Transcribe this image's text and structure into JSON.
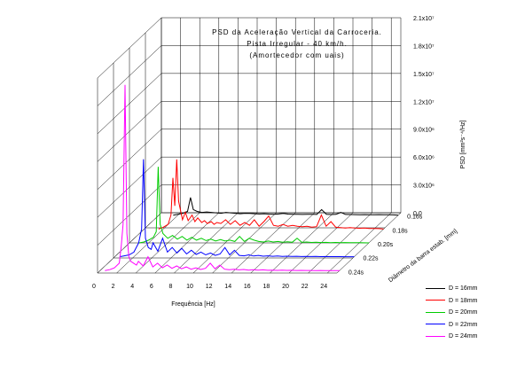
{
  "chart_data": {
    "type": "line",
    "title": "PSD da Aceleração Vertical da Carroceria.",
    "subtitle_lines": [
      "Pista Irregular - 40 km/h.",
      "(Amortecedor com uais)"
    ],
    "xlabel": "Frequência [Hz]",
    "ylabel": "PSD [mm²s⁻⁴/Hz]",
    "zlabel": "Diâmetro da barra estab. [mm]",
    "xlim": [
      0,
      25
    ],
    "x_ticks": [
      0,
      2,
      4,
      6,
      8,
      10,
      12,
      14,
      16,
      18,
      20,
      22,
      24
    ],
    "x_tick_labels": [
      "0",
      "2",
      "4",
      "6",
      "8",
      "10",
      "12",
      "14",
      "16",
      "18",
      "20",
      "22",
      "24"
    ],
    "ylim": [
      0,
      21000000
    ],
    "y_ticks": [
      0,
      3000000,
      6000000,
      9000000,
      12000000,
      15000000,
      18000000,
      21000000
    ],
    "y_tick_labels": [
      "0.0",
      "3.0x10⁶",
      "6.0x10⁶",
      "9.0x10⁶",
      "1.2x10⁷",
      "1.5x10⁷",
      "1.8x10⁷",
      "2.1x10⁷"
    ],
    "z_tick_labels": [
      "0.16s",
      "0.18s",
      "0.20s",
      "0.22s",
      "0.24s"
    ],
    "grid": true,
    "legend_position": "bottom-right",
    "series": [
      {
        "name": "D = 16mm",
        "color": "#000000",
        "x": [
          1.5,
          2.0,
          2.5,
          3.0,
          3.3,
          3.6,
          4.0,
          4.5,
          5.0,
          5.5,
          6.0,
          6.5,
          7.0,
          7.5,
          8.0,
          8.5,
          9.0,
          9.5,
          10.0,
          10.5,
          11.0,
          11.5,
          12.0,
          12.5,
          13.0,
          13.5,
          14.0,
          14.5,
          15.0,
          15.5,
          16.0,
          16.5,
          17.0,
          17.5,
          18.0,
          18.5,
          19.0,
          19.5,
          20.0,
          20.5,
          21.0,
          21.5,
          22.0,
          22.5,
          23.0,
          23.5,
          24.0,
          24.5
        ],
        "y": [
          0,
          100000,
          200000,
          400000,
          1900000,
          600000,
          400000,
          300000,
          350000,
          300000,
          250000,
          200000,
          300000,
          250000,
          200000,
          150000,
          200000,
          180000,
          150000,
          130000,
          150000,
          120000,
          100000,
          130000,
          180000,
          120000,
          100000,
          90000,
          80000,
          100000,
          90000,
          80000,
          600000,
          100000,
          70000,
          90000,
          300000,
          80000,
          70000,
          60000,
          50000,
          60000,
          50000,
          40000,
          60000,
          50000,
          40000,
          30000
        ]
      },
      {
        "name": "D = 18mm",
        "color": "#ff0000",
        "x": [
          1.5,
          2.0,
          2.5,
          2.8,
          3.0,
          3.2,
          3.4,
          3.6,
          3.8,
          4.0,
          4.3,
          4.6,
          5.0,
          5.3,
          5.6,
          6.0,
          6.3,
          6.6,
          7.0,
          7.3,
          7.6,
          8.0,
          8.5,
          9.0,
          9.5,
          10.0,
          10.5,
          11.0,
          11.5,
          12.0,
          12.5,
          13.0,
          13.5,
          14.0,
          14.5,
          15.0,
          15.5,
          16.0,
          16.5,
          17.0,
          17.5,
          18.0,
          18.5,
          19.0,
          19.5,
          20.0,
          20.5,
          21.0,
          21.5,
          22.0,
          22.5,
          23.0,
          23.5,
          24.0,
          24.5
        ],
        "y": [
          0,
          200000,
          500000,
          1500000,
          5500000,
          2500000,
          7500000,
          3000000,
          2000000,
          1000000,
          1800000,
          900000,
          1500000,
          800000,
          1200000,
          700000,
          900000,
          600000,
          800000,
          500000,
          700000,
          600000,
          1000000,
          500000,
          900000,
          400000,
          700000,
          400000,
          1000000,
          300000,
          800000,
          1400000,
          400000,
          300000,
          500000,
          300000,
          400000,
          300000,
          250000,
          300000,
          200000,
          250000,
          1500000,
          300000,
          800000,
          200000,
          150000,
          100000,
          150000,
          100000,
          80000,
          100000,
          60000,
          50000,
          40000
        ]
      },
      {
        "name": "D = 20mm",
        "color": "#00cc00",
        "x": [
          1.0,
          1.5,
          2.0,
          2.5,
          2.8,
          3.0,
          3.2,
          3.5,
          3.8,
          4.0,
          4.5,
          5.0,
          5.5,
          6.0,
          6.5,
          7.0,
          7.5,
          8.0,
          8.5,
          9.0,
          9.5,
          10.0,
          10.5,
          11.0,
          11.5,
          12.0,
          12.5,
          13.0,
          13.5,
          14.0,
          14.5,
          15.0,
          15.5,
          16.0,
          16.5,
          17.0,
          17.5,
          18.0,
          18.5,
          19.0,
          19.5,
          20.0,
          20.5,
          21.0,
          21.5,
          22.0,
          22.5,
          23.0,
          23.5,
          24.0,
          24.5
        ],
        "y": [
          0,
          100000,
          300000,
          600000,
          1200000,
          8200000,
          2000000,
          1000000,
          700000,
          500000,
          800000,
          400000,
          700000,
          300000,
          600000,
          300000,
          500000,
          250000,
          400000,
          200000,
          350000,
          200000,
          300000,
          150000,
          700000,
          150000,
          500000,
          300000,
          150000,
          100000,
          200000,
          100000,
          150000,
          80000,
          120000,
          70000,
          500000,
          60000,
          100000,
          50000,
          80000,
          40000,
          60000,
          30000,
          50000,
          30000,
          40000,
          20000,
          30000,
          20000,
          10000
        ]
      },
      {
        "name": "D = 22mm",
        "color": "#0000ff",
        "x": [
          0.5,
          1.0,
          1.5,
          2.0,
          2.5,
          2.8,
          3.0,
          3.2,
          3.5,
          3.8,
          4.0,
          4.5,
          5.0,
          5.5,
          6.0,
          6.5,
          7.0,
          7.5,
          8.0,
          8.5,
          9.0,
          9.5,
          10.0,
          10.5,
          11.0,
          11.5,
          12.0,
          12.5,
          13.0,
          13.5,
          14.0,
          14.5,
          15.0,
          15.5,
          16.0,
          16.5,
          17.0,
          17.5,
          18.0,
          18.5,
          19.0,
          19.5,
          20.0,
          20.5,
          21.0,
          21.5,
          22.0,
          22.5,
          23.0,
          23.5,
          24.0,
          24.5
        ],
        "y": [
          0,
          100000,
          200000,
          500000,
          1500000,
          3000000,
          10500000,
          2000000,
          1000000,
          800000,
          1500000,
          600000,
          2000000,
          500000,
          1000000,
          400000,
          900000,
          300000,
          700000,
          250000,
          500000,
          200000,
          400000,
          150000,
          300000,
          1000000,
          200000,
          700000,
          150000,
          100000,
          200000,
          80000,
          150000,
          60000,
          100000,
          50000,
          80000,
          40000,
          60000,
          30000,
          50000,
          25000,
          40000,
          20000,
          30000,
          15000,
          20000,
          10000,
          15000,
          10000,
          8000,
          5000
        ]
      },
      {
        "name": "D = 24mm",
        "color": "#ff00ff",
        "x": [
          0.5,
          1.0,
          1.5,
          2.0,
          2.2,
          2.4,
          2.6,
          2.8,
          3.0,
          3.2,
          3.5,
          3.8,
          4.0,
          4.5,
          5.0,
          5.5,
          6.0,
          6.5,
          7.0,
          7.5,
          8.0,
          8.5,
          9.0,
          9.5,
          10.0,
          10.5,
          11.0,
          11.5,
          12.0,
          12.5,
          13.0,
          13.5,
          14.0,
          14.5,
          15.0,
          15.5,
          16.0,
          16.5,
          17.0,
          17.5,
          18.0,
          18.5,
          19.0,
          19.5,
          20.0,
          20.5,
          21.0,
          21.5,
          22.0,
          22.5,
          23.0,
          23.5,
          24.0,
          24.5
        ],
        "y": [
          0,
          100000,
          300000,
          800000,
          2500000,
          5000000,
          20000000,
          4000000,
          1500000,
          1000000,
          800000,
          600000,
          1000000,
          500000,
          1500000,
          400000,
          800000,
          300000,
          600000,
          250000,
          500000,
          200000,
          400000,
          150000,
          300000,
          120000,
          250000,
          800000,
          200000,
          600000,
          150000,
          100000,
          150000,
          80000,
          120000,
          60000,
          100000,
          50000,
          80000,
          40000,
          60000,
          30000,
          50000,
          25000,
          40000,
          20000,
          30000,
          15000,
          20000,
          10000,
          15000,
          8000,
          5000,
          3000
        ]
      }
    ]
  }
}
